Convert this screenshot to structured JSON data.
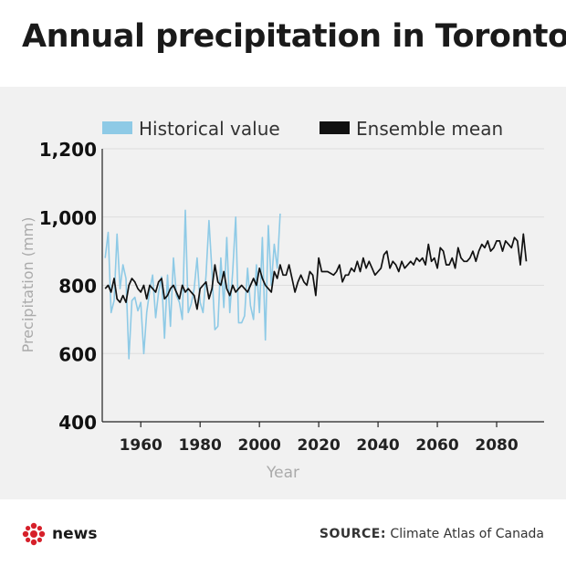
{
  "title": "Annual precipitation in Toronto",
  "source": {
    "label": "SOURCE:",
    "text": "Climate Atlas of Canada"
  },
  "logo": {
    "text": "news",
    "icon": "cbc-gem-icon",
    "color": "#d6202a"
  },
  "colors": {
    "historical": "#8ecae6",
    "ensemble": "#111111",
    "panel": "#f1f1f1"
  },
  "chart_data": {
    "type": "line",
    "title": "Annual precipitation in Toronto",
    "xlabel": "Year",
    "ylabel": "Precipitation (mm)",
    "xlim": [
      1947,
      2096
    ],
    "ylim": [
      400,
      1200
    ],
    "x_ticks": [
      1960,
      1980,
      2000,
      2020,
      2040,
      2060,
      2080
    ],
    "y_ticks": [
      400,
      600,
      800,
      1000,
      1200
    ],
    "y_tick_labels": [
      "400",
      "600",
      "800",
      "1,000",
      "1,200"
    ],
    "grid": true,
    "legend": "top",
    "series": [
      {
        "name": "Historical value",
        "color": "#8ecae6",
        "x_start": 1948,
        "values": [
          880,
          955,
          720,
          755,
          950,
          790,
          860,
          820,
          585,
          755,
          765,
          725,
          750,
          600,
          720,
          785,
          830,
          705,
          780,
          825,
          645,
          830,
          680,
          880,
          770,
          750,
          700,
          1020,
          720,
          745,
          790,
          880,
          750,
          720,
          830,
          990,
          840,
          670,
          680,
          880,
          735,
          940,
          720,
          840,
          1000,
          690,
          690,
          710,
          850,
          740,
          700,
          860,
          720,
          940,
          640,
          975,
          800,
          920,
          850,
          1010
        ]
      },
      {
        "name": "Ensemble mean",
        "color": "#111111",
        "x_start": 1948,
        "values": [
          790,
          800,
          780,
          820,
          760,
          750,
          770,
          750,
          800,
          820,
          810,
          790,
          780,
          800,
          760,
          800,
          790,
          780,
          810,
          820,
          760,
          770,
          790,
          800,
          780,
          760,
          800,
          780,
          790,
          780,
          770,
          730,
          790,
          800,
          810,
          760,
          790,
          860,
          810,
          800,
          840,
          790,
          770,
          800,
          780,
          790,
          800,
          790,
          780,
          800,
          820,
          800,
          850,
          820,
          800,
          790,
          780,
          840,
          820,
          860,
          830,
          830,
          860,
          820,
          780,
          810,
          830,
          810,
          800,
          840,
          830,
          770,
          880,
          840,
          840,
          840,
          835,
          830,
          840,
          860,
          810,
          830,
          830,
          850,
          840,
          870,
          840,
          880,
          850,
          870,
          850,
          830,
          840,
          850,
          890,
          900,
          850,
          870,
          860,
          840,
          870,
          850,
          860,
          870,
          860,
          880,
          870,
          880,
          860,
          920,
          870,
          880,
          850,
          910,
          900,
          860,
          860,
          880,
          850,
          910,
          880,
          870,
          870,
          880,
          900,
          870,
          900,
          920,
          910,
          930,
          900,
          910,
          930,
          930,
          900,
          930,
          920,
          910,
          940,
          930,
          860,
          950,
          870
        ]
      }
    ]
  }
}
